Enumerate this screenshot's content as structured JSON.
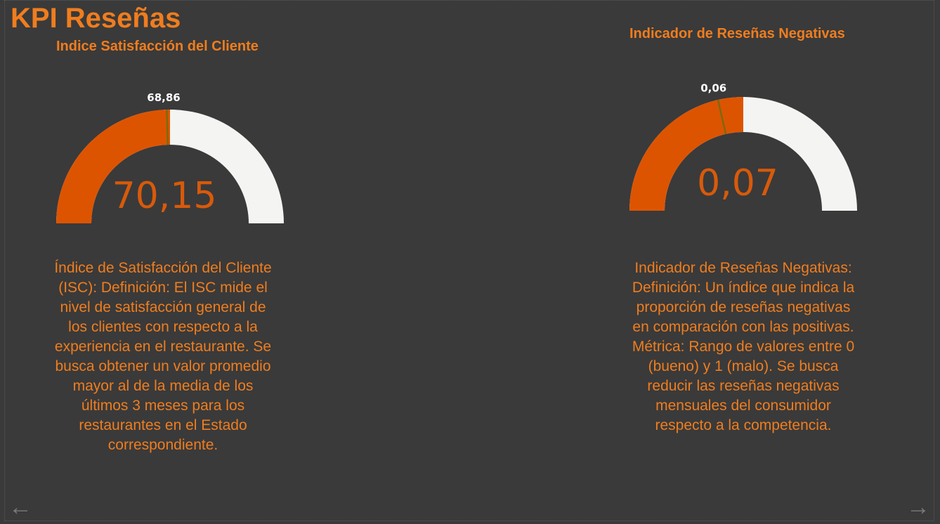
{
  "page": {
    "title": "KPI Reseñas"
  },
  "colors": {
    "background": "#3a3a3a",
    "accent": "#f07d1e",
    "gauge_fill": "#dd5400",
    "gauge_empty": "#f4f4f2",
    "target_marker": "#7a6a10",
    "value_text": "#d85a0a"
  },
  "gauges": {
    "isc": {
      "title": "Indice Satisfacción del Cliente",
      "value_label": "70,15",
      "target_label": "68,86",
      "description": "Índice de Satisfacción del Cliente (ISC): Definición: El ISC mide el nivel de satisfacción general de los clientes con respecto a la experiencia en el restaurante. Se busca obtener un valor promedio mayor al de la media de los últimos 3 meses para los restaurantes en el Estado correspondiente."
    },
    "negativas": {
      "title": "Indicador de Reseñas Negativas",
      "value_label": "0,07",
      "target_label": "0,06",
      "description": "Indicador de Reseñas Negativas: Definición: Un índice que indica la proporción de reseñas negativas en comparación con las positivas. Métrica: Rango de valores entre 0 (bueno) y 1 (malo). Se busca reducir las reseñas negativas mensuales del consumidor respecto a la competencia."
    }
  },
  "chart_data": [
    {
      "type": "gauge",
      "title": "Indice Satisfacción del Cliente",
      "value": 70.15,
      "target": 68.86,
      "min": 0,
      "max": 140.3
    },
    {
      "type": "gauge",
      "title": "Indicador de Reseñas Negativas",
      "value": 0.07,
      "target": 0.06,
      "min": 0,
      "max": 0.14
    }
  ],
  "nav": {
    "prev_icon": "arrow-left-icon",
    "next_icon": "arrow-right-icon",
    "prev_glyph": "←",
    "next_glyph": "→"
  }
}
